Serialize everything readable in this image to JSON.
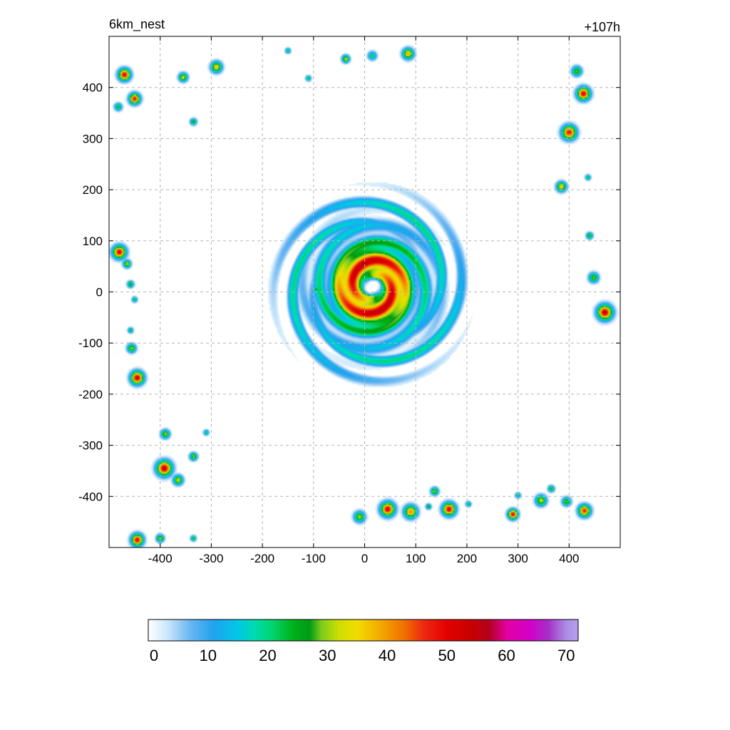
{
  "chart_data": {
    "type": "heatmap",
    "title_left": "6km_nest",
    "title_right": "+107h",
    "xlabel": "",
    "ylabel": "",
    "xlim": [
      -500,
      500
    ],
    "ylim": [
      -500,
      500
    ],
    "x_ticks": [
      -400,
      -300,
      -200,
      -100,
      0,
      100,
      200,
      300,
      400
    ],
    "y_ticks": [
      400,
      300,
      200,
      100,
      0,
      -100,
      -200,
      -300,
      -400
    ],
    "grid": true,
    "colorbar": {
      "range": [
        0,
        72
      ],
      "tick_values": [
        0,
        10,
        20,
        30,
        40,
        50,
        60,
        70
      ],
      "stops": [
        {
          "v": 0,
          "c": "#ffffff"
        },
        {
          "v": 3,
          "c": "#cfe9fb"
        },
        {
          "v": 7,
          "c": "#6ab6f2"
        },
        {
          "v": 11,
          "c": "#20a2ee"
        },
        {
          "v": 15,
          "c": "#00c8e6"
        },
        {
          "v": 18,
          "c": "#00dcaa"
        },
        {
          "v": 21,
          "c": "#00d26a"
        },
        {
          "v": 24,
          "c": "#00b41e"
        },
        {
          "v": 27,
          "c": "#009a14"
        },
        {
          "v": 29,
          "c": "#7ccc1c"
        },
        {
          "v": 32,
          "c": "#cfdf00"
        },
        {
          "v": 35,
          "c": "#f1dc00"
        },
        {
          "v": 39,
          "c": "#f3a800"
        },
        {
          "v": 43,
          "c": "#f06e00"
        },
        {
          "v": 46,
          "c": "#ee2a12"
        },
        {
          "v": 50,
          "c": "#e40000"
        },
        {
          "v": 54,
          "c": "#c90000"
        },
        {
          "v": 57,
          "c": "#b4001c"
        },
        {
          "v": 60,
          "c": "#e000a0"
        },
        {
          "v": 64,
          "c": "#d400c8"
        },
        {
          "v": 67,
          "c": "#a630c8"
        },
        {
          "v": 70,
          "c": "#a98ee4"
        },
        {
          "v": 72,
          "c": "#b8a0ec"
        }
      ]
    },
    "field": {
      "vortex": {
        "center": [
          15,
          10
        ],
        "eye_radius": 20,
        "core_peak": 55,
        "core_radius": 60,
        "moderate": 34,
        "moderate_radius": 125,
        "outer_radius": 155,
        "spiral_k": 0.09
      },
      "cells": [
        {
          "x": -470,
          "y": 425,
          "peak": 52,
          "r": 11
        },
        {
          "x": -450,
          "y": 378,
          "peak": 50,
          "r": 10
        },
        {
          "x": -482,
          "y": 362,
          "peak": 25,
          "r": 7
        },
        {
          "x": -355,
          "y": 420,
          "peak": 35,
          "r": 8
        },
        {
          "x": -335,
          "y": 333,
          "peak": 28,
          "r": 6
        },
        {
          "x": -290,
          "y": 440,
          "peak": 38,
          "r": 10
        },
        {
          "x": -150,
          "y": 472,
          "peak": 22,
          "r": 5
        },
        {
          "x": -110,
          "y": 418,
          "peak": 24,
          "r": 5
        },
        {
          "x": -37,
          "y": 456,
          "peak": 34,
          "r": 7
        },
        {
          "x": 15,
          "y": 462,
          "peak": 22,
          "r": 8
        },
        {
          "x": 85,
          "y": 466,
          "peak": 40,
          "r": 10
        },
        {
          "x": 415,
          "y": 432,
          "peak": 30,
          "r": 9
        },
        {
          "x": 428,
          "y": 388,
          "peak": 52,
          "r": 12
        },
        {
          "x": 400,
          "y": 312,
          "peak": 50,
          "r": 13
        },
        {
          "x": 385,
          "y": 206,
          "peak": 38,
          "r": 9
        },
        {
          "x": 437,
          "y": 224,
          "peak": 24,
          "r": 5
        },
        {
          "x": 440,
          "y": 110,
          "peak": 28,
          "r": 6
        },
        {
          "x": 448,
          "y": 28,
          "peak": 30,
          "r": 9
        },
        {
          "x": 470,
          "y": -40,
          "peak": 54,
          "r": 14
        },
        {
          "x": -480,
          "y": 78,
          "peak": 52,
          "r": 12
        },
        {
          "x": -465,
          "y": 55,
          "peak": 34,
          "r": 7
        },
        {
          "x": -458,
          "y": 15,
          "peak": 28,
          "r": 6
        },
        {
          "x": -450,
          "y": -15,
          "peak": 24,
          "r": 5
        },
        {
          "x": -458,
          "y": -75,
          "peak": 24,
          "r": 5
        },
        {
          "x": -456,
          "y": -110,
          "peak": 32,
          "r": 8
        },
        {
          "x": -445,
          "y": -168,
          "peak": 54,
          "r": 12
        },
        {
          "x": -390,
          "y": -278,
          "peak": 32,
          "r": 8
        },
        {
          "x": -392,
          "y": -345,
          "peak": 54,
          "r": 14
        },
        {
          "x": -365,
          "y": -368,
          "peak": 34,
          "r": 9
        },
        {
          "x": -335,
          "y": -322,
          "peak": 32,
          "r": 7
        },
        {
          "x": -310,
          "y": -275,
          "peak": 22,
          "r": 5
        },
        {
          "x": -445,
          "y": -485,
          "peak": 52,
          "r": 11
        },
        {
          "x": -400,
          "y": -482,
          "peak": 32,
          "r": 7
        },
        {
          "x": -335,
          "y": -482,
          "peak": 28,
          "r": 5
        },
        {
          "x": -10,
          "y": -440,
          "peak": 32,
          "r": 10
        },
        {
          "x": 45,
          "y": -425,
          "peak": 52,
          "r": 13
        },
        {
          "x": 90,
          "y": -430,
          "peak": 42,
          "r": 12
        },
        {
          "x": 137,
          "y": -390,
          "peak": 32,
          "r": 7
        },
        {
          "x": 165,
          "y": -425,
          "peak": 52,
          "r": 12
        },
        {
          "x": 125,
          "y": -420,
          "peak": 28,
          "r": 5
        },
        {
          "x": 203,
          "y": -415,
          "peak": 24,
          "r": 5
        },
        {
          "x": 290,
          "y": -435,
          "peak": 52,
          "r": 9
        },
        {
          "x": 300,
          "y": -398,
          "peak": 24,
          "r": 5
        },
        {
          "x": 345,
          "y": -408,
          "peak": 34,
          "r": 10
        },
        {
          "x": 365,
          "y": -385,
          "peak": 26,
          "r": 6
        },
        {
          "x": 395,
          "y": -410,
          "peak": 30,
          "r": 8
        },
        {
          "x": 430,
          "y": -428,
          "peak": 48,
          "r": 11
        },
        {
          "x": -95,
          "y": 5,
          "peak": 28,
          "r": 5
        }
      ]
    }
  }
}
